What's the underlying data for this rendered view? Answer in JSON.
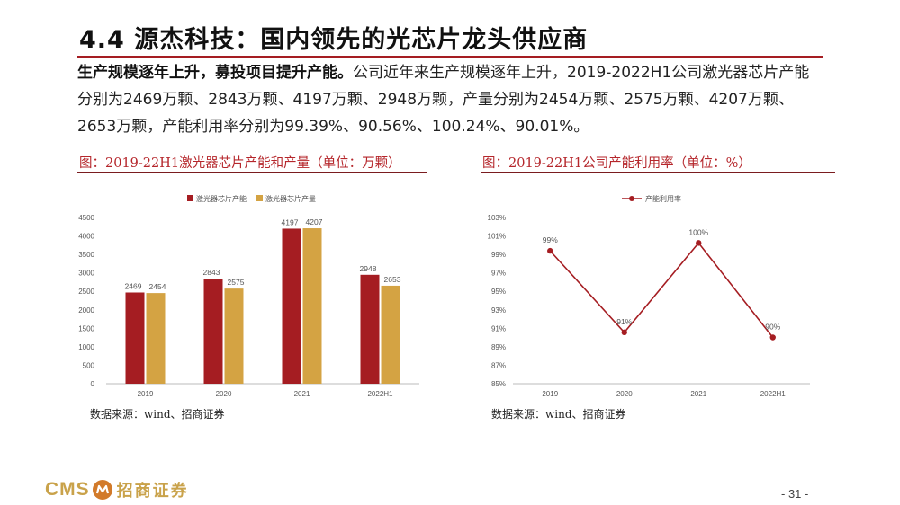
{
  "header": {
    "title": "4.4 源杰科技：国内领先的光芯片龙头供应商"
  },
  "paragraph": {
    "lead": "生产规模逐年上升，募投项目提升产能。",
    "body": "公司近年来生产规模逐年上升，2019-2022H1公司激光器芯片产能分别为2469万颗、2843万颗、4197万颗、2948万颗，产量分别为2454万颗、2575万颗、4207万颗、2653万颗，产能利用率分别为99.39%、90.56%、100.24%、90.01%。"
  },
  "figures": [
    {
      "title": "图：2019-22H1激光器芯片产能和产量（单位：万颗）",
      "source": "数据来源：wind、招商证券"
    },
    {
      "title": "图：2019-22H1公司产能利用率（单位：%）",
      "source": "数据来源：wind、招商证券"
    }
  ],
  "chart_data": [
    {
      "type": "bar",
      "categories": [
        "2019",
        "2020",
        "2021",
        "2022H1"
      ],
      "series": [
        {
          "name": "激光器芯片产能",
          "values": [
            2469,
            2843,
            4197,
            2948
          ],
          "color": "#a51d22"
        },
        {
          "name": "激光器芯片产量",
          "values": [
            2454,
            2575,
            4207,
            2653
          ],
          "color": "#d4a343"
        }
      ],
      "ylim": [
        0,
        4500
      ],
      "yticks": [
        "0",
        "500",
        "1000",
        "1500",
        "2000",
        "2500",
        "3000",
        "3500",
        "4000",
        "4500"
      ],
      "legend": "top-center",
      "grid": false
    },
    {
      "type": "line",
      "categories": [
        "2019",
        "2020",
        "2021",
        "2022H1"
      ],
      "series": [
        {
          "name": "产能利用率",
          "values": [
            99.39,
            90.56,
            100.24,
            90.01
          ],
          "labels": [
            "99%",
            "91%",
            "100%",
            "90%"
          ],
          "color": "#a51d22"
        }
      ],
      "ylim": [
        85,
        103
      ],
      "yticks": [
        "85%",
        "87%",
        "89%",
        "91%",
        "93%",
        "95%",
        "97%",
        "99%",
        "101%",
        "103%"
      ],
      "legend": "top-center",
      "grid": false
    }
  ],
  "footer": {
    "logo_latin": "CMS",
    "logo_cn": "招商证券",
    "page": "- 31 -"
  },
  "colors": {
    "accent": "#a51d22",
    "gold": "#d4a343",
    "logo_gold": "#c9a24a"
  }
}
